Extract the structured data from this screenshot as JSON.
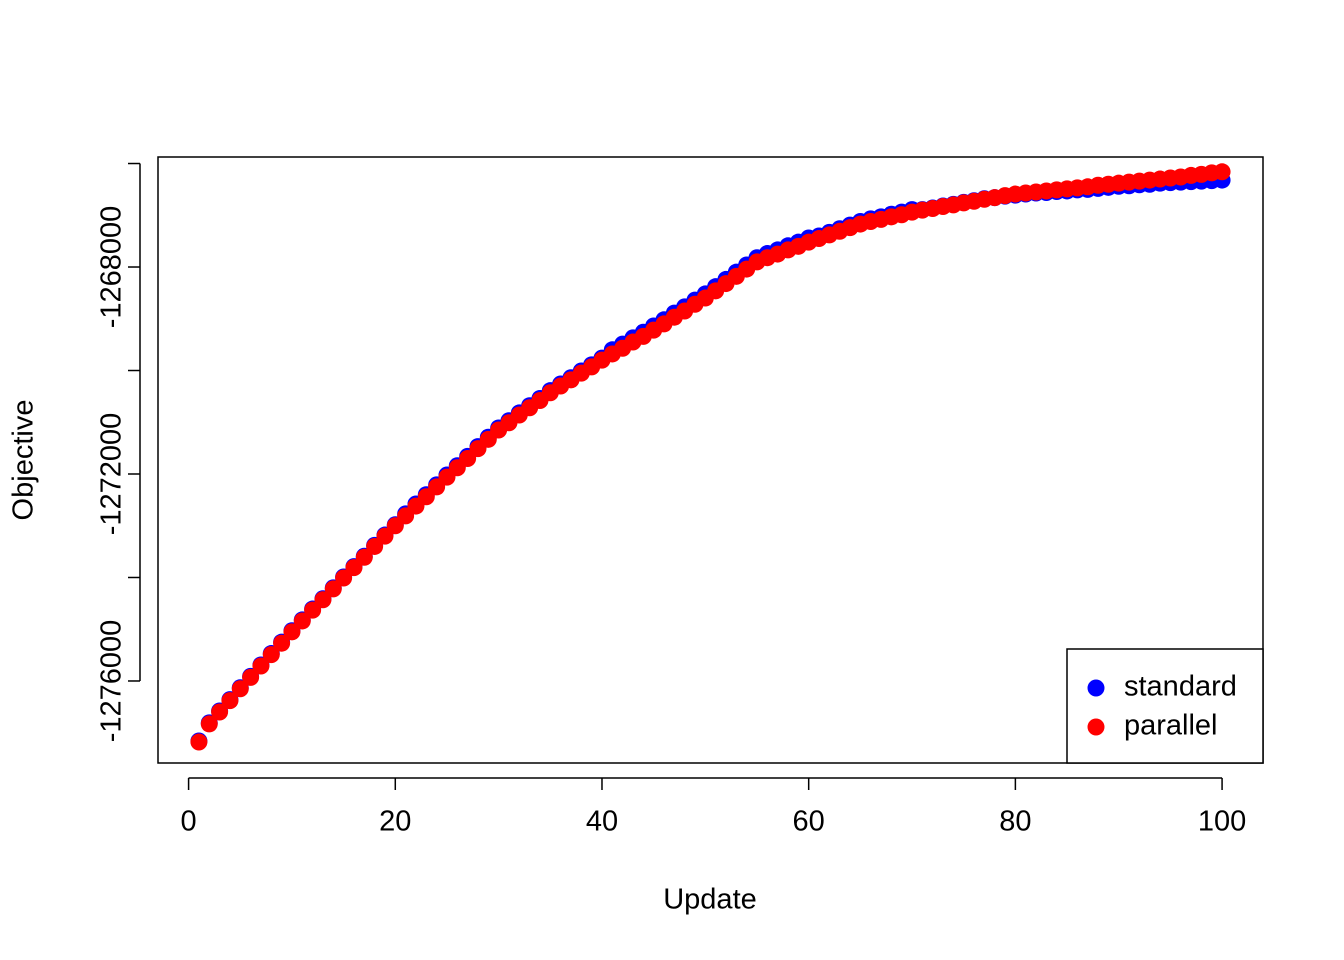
{
  "chart_data": {
    "type": "scatter",
    "x_label": "Update",
    "y_label": "Objective",
    "x": [
      1,
      2,
      3,
      4,
      5,
      6,
      7,
      8,
      9,
      10,
      11,
      12,
      13,
      14,
      15,
      16,
      17,
      18,
      19,
      20,
      21,
      22,
      23,
      24,
      25,
      26,
      27,
      28,
      29,
      30,
      31,
      32,
      33,
      34,
      35,
      36,
      37,
      38,
      39,
      40,
      41,
      42,
      43,
      44,
      45,
      46,
      47,
      48,
      49,
      50,
      51,
      52,
      53,
      54,
      55,
      56,
      57,
      58,
      59,
      60,
      61,
      62,
      63,
      64,
      65,
      66,
      67,
      68,
      69,
      70,
      71,
      72,
      73,
      74,
      75,
      76,
      77,
      78,
      79,
      80,
      81,
      82,
      83,
      84,
      85,
      86,
      87,
      88,
      89,
      90,
      91,
      92,
      93,
      94,
      95,
      96,
      97,
      98,
      99,
      100
    ],
    "series": [
      {
        "name": "standard",
        "color": "#0000ff",
        "values": [
          -1277160,
          -1276810,
          -1276580,
          -1276360,
          -1276130,
          -1275910,
          -1275690,
          -1275470,
          -1275250,
          -1275030,
          -1274820,
          -1274610,
          -1274410,
          -1274200,
          -1273990,
          -1273790,
          -1273590,
          -1273380,
          -1273180,
          -1272980,
          -1272770,
          -1272580,
          -1272400,
          -1272210,
          -1272020,
          -1271840,
          -1271660,
          -1271470,
          -1271290,
          -1271110,
          -1270970,
          -1270820,
          -1270680,
          -1270540,
          -1270390,
          -1270260,
          -1270140,
          -1270010,
          -1269890,
          -1269760,
          -1269600,
          -1269490,
          -1269370,
          -1269260,
          -1269140,
          -1269020,
          -1268890,
          -1268770,
          -1268640,
          -1268520,
          -1268380,
          -1268240,
          -1268100,
          -1267960,
          -1267820,
          -1267740,
          -1267670,
          -1267590,
          -1267520,
          -1267440,
          -1267400,
          -1267330,
          -1267260,
          -1267190,
          -1267120,
          -1267070,
          -1267030,
          -1266980,
          -1266940,
          -1266890,
          -1266890,
          -1266860,
          -1266820,
          -1266790,
          -1266750,
          -1266720,
          -1266680,
          -1266660,
          -1266630,
          -1266610,
          -1266590,
          -1266570,
          -1266560,
          -1266540,
          -1266530,
          -1266510,
          -1266500,
          -1266480,
          -1266460,
          -1266440,
          -1266430,
          -1266410,
          -1266400,
          -1266380,
          -1266370,
          -1266360,
          -1266350,
          -1266340,
          -1266330,
          -1266320
        ]
      },
      {
        "name": "parallel",
        "color": "#ff0000",
        "values": [
          -1277180,
          -1276830,
          -1276600,
          -1276380,
          -1276150,
          -1275930,
          -1275710,
          -1275490,
          -1275270,
          -1275050,
          -1274840,
          -1274630,
          -1274430,
          -1274220,
          -1274010,
          -1273810,
          -1273610,
          -1273400,
          -1273200,
          -1273000,
          -1272810,
          -1272620,
          -1272440,
          -1272250,
          -1272060,
          -1271880,
          -1271700,
          -1271510,
          -1271330,
          -1271150,
          -1271010,
          -1270860,
          -1270720,
          -1270580,
          -1270430,
          -1270300,
          -1270180,
          -1270050,
          -1269930,
          -1269800,
          -1269680,
          -1269570,
          -1269450,
          -1269340,
          -1269220,
          -1269100,
          -1268970,
          -1268850,
          -1268720,
          -1268600,
          -1268460,
          -1268320,
          -1268180,
          -1268040,
          -1267900,
          -1267820,
          -1267750,
          -1267670,
          -1267600,
          -1267520,
          -1267450,
          -1267380,
          -1267310,
          -1267240,
          -1267170,
          -1267120,
          -1267080,
          -1267030,
          -1266990,
          -1266940,
          -1266900,
          -1266870,
          -1266830,
          -1266800,
          -1266760,
          -1266730,
          -1266690,
          -1266660,
          -1266620,
          -1266590,
          -1266570,
          -1266550,
          -1266530,
          -1266510,
          -1266490,
          -1266470,
          -1266450,
          -1266420,
          -1266400,
          -1266380,
          -1266360,
          -1266340,
          -1266320,
          -1266300,
          -1266280,
          -1266260,
          -1266230,
          -1266210,
          -1266180,
          -1266160
        ]
      }
    ],
    "xlim": [
      -2.96,
      103.96
    ],
    "xticks": [
      0,
      20,
      40,
      60,
      80,
      100
    ],
    "ylim": [
      -1277585,
      -1265874
    ],
    "yticks": [
      -1276000,
      {
        "value": -1274000,
        "label": null
      },
      -1272000,
      {
        "value": -1270000,
        "label": null
      },
      -1268000,
      {
        "value": -1266000,
        "label": null
      }
    ],
    "legend": "bottom-right",
    "grid": false
  }
}
